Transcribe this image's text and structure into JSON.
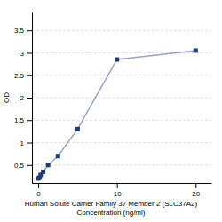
{
  "chart_data": {
    "type": "line",
    "xlabel": "Human Solute Carrier Family 37 Member 2 (SLC37A2)\nConcentration (ng/ml)",
    "ylabel": "OD",
    "x": [
      0,
      0.156,
      0.313,
      0.625,
      1.25,
      2.5,
      5,
      10,
      20
    ],
    "values": [
      0.2,
      0.22,
      0.28,
      0.35,
      0.5,
      0.7,
      1.3,
      2.85,
      3.05
    ],
    "color": "#1f3a6e",
    "marker": "square",
    "xlim": [
      -0.8,
      22
    ],
    "xticks": [
      0,
      10,
      20
    ],
    "ylim": [
      0.1,
      3.9
    ],
    "yticks": [
      0.5,
      1,
      1.5,
      2,
      2.5,
      3,
      3.5
    ],
    "grid": "y"
  }
}
